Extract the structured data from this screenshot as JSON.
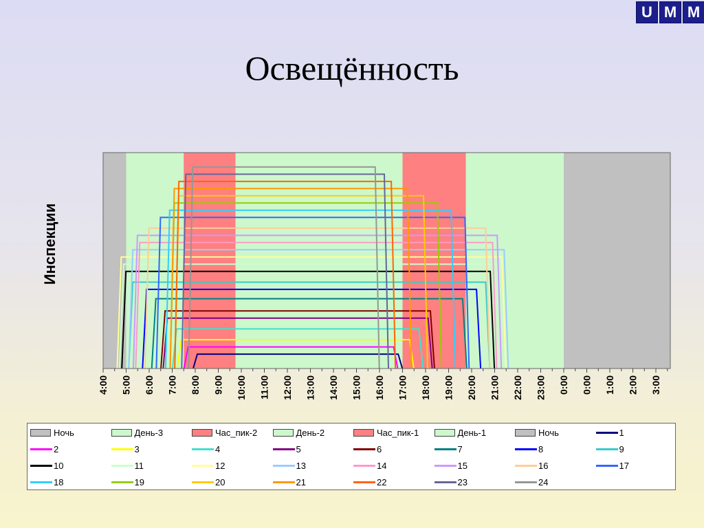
{
  "logo": {
    "letters": [
      "U",
      "M",
      "M"
    ],
    "color": "#1c1e8c"
  },
  "slide": {
    "title": "Освещённость"
  },
  "chart_data": {
    "type": "line",
    "ylabel": "Инспекции",
    "x_ticks": [
      "4:00",
      "5:00",
      "6:00",
      "7:00",
      "8:00",
      "9:00",
      "10:00",
      "11:00",
      "12:00",
      "13:00",
      "14:00",
      "15:00",
      "16:00",
      "17:00",
      "18:00",
      "19:00",
      "20:00",
      "21:00",
      "22:00",
      "23:00",
      "0:00",
      "0:00",
      "1:00",
      "2:00",
      "3:00"
    ],
    "bands": [
      {
        "name": "Ночь",
        "start": 0,
        "end": 1,
        "color": "#c0c0c0"
      },
      {
        "name": "День-3",
        "start": 1,
        "end": 3.5,
        "color": "#ccf8cc"
      },
      {
        "name": "Час_пик-2",
        "start": 3.5,
        "end": 5.75,
        "color": "#ff8080"
      },
      {
        "name": "День-2",
        "start": 5.75,
        "end": 13,
        "color": "#ccf8cc"
      },
      {
        "name": "Час_пик-1",
        "start": 13,
        "end": 15.75,
        "color": "#ff8080"
      },
      {
        "name": "День-1",
        "start": 15.75,
        "end": 20,
        "color": "#ccf8cc"
      },
      {
        "name": "Ночь",
        "start": 20,
        "end": 24.75,
        "color": "#c0c0c0"
      }
    ],
    "series": [
      {
        "name": "1",
        "color": "#000080",
        "level": 2,
        "start": 4.0,
        "end": 12.9
      },
      {
        "name": "2",
        "color": "#ff00ff",
        "level": 3,
        "start": 3.6,
        "end": 12.7
      },
      {
        "name": "3",
        "color": "#ffff00",
        "level": 4,
        "start": 3.3,
        "end": 13.4
      },
      {
        "name": "4",
        "color": "#40e0d0",
        "level": 5.5,
        "start": 3.1,
        "end": 13.8
      },
      {
        "name": "5",
        "color": "#800080",
        "level": 7,
        "start": 2.7,
        "end": 14.2
      },
      {
        "name": "6",
        "color": "#800000",
        "level": 8,
        "start": 2.6,
        "end": 14.3
      },
      {
        "name": "7",
        "color": "#008080",
        "level": 9.7,
        "start": 2.2,
        "end": 15.7
      },
      {
        "name": "8",
        "color": "#0000ff",
        "level": 11,
        "start": 1.8,
        "end": 16.3
      },
      {
        "name": "9",
        "color": "#33cccc",
        "level": 12,
        "start": 1.2,
        "end": 16.7
      },
      {
        "name": "10",
        "color": "#000000",
        "level": 13.5,
        "start": 0.9,
        "end": 16.9
      },
      {
        "name": "11",
        "color": "#ccffcc",
        "level": 14.5,
        "start": 0.8,
        "end": 17.2
      },
      {
        "name": "12",
        "color": "#ffff99",
        "level": 15.5,
        "start": 0.7,
        "end": 17.4
      },
      {
        "name": "13",
        "color": "#99ccff",
        "level": 16.5,
        "start": 1.2,
        "end": 17.5
      },
      {
        "name": "14",
        "color": "#ff99cc",
        "level": 17.5,
        "start": 1.5,
        "end": 17.0
      },
      {
        "name": "15",
        "color": "#cc99ff",
        "level": 18.5,
        "start": 1.4,
        "end": 17.2
      },
      {
        "name": "16",
        "color": "#ffcc99",
        "level": 19.5,
        "start": 1.9,
        "end": 16.7
      },
      {
        "name": "17",
        "color": "#3366ff",
        "level": 21,
        "start": 2.4,
        "end": 15.8
      },
      {
        "name": "18",
        "color": "#33ccff",
        "level": 22,
        "start": 2.8,
        "end": 15.2
      },
      {
        "name": "19",
        "color": "#99cc00",
        "level": 23,
        "start": 3.0,
        "end": 14.6
      },
      {
        "name": "20",
        "color": "#ffcc00",
        "level": 24,
        "start": 3.2,
        "end": 14.0
      },
      {
        "name": "21",
        "color": "#ff9900",
        "level": 25,
        "start": 3.0,
        "end": 13.3
      },
      {
        "name": "22",
        "color": "#ff6600",
        "level": 26,
        "start": 3.2,
        "end": 12.6
      },
      {
        "name": "23",
        "color": "#666699",
        "level": 27,
        "start": 3.5,
        "end": 12.3
      },
      {
        "name": "24",
        "color": "#969696",
        "level": 28,
        "start": 3.8,
        "end": 11.9
      }
    ],
    "ylim": [
      0,
      30
    ],
    "grid": false,
    "legend_position": "bottom"
  }
}
